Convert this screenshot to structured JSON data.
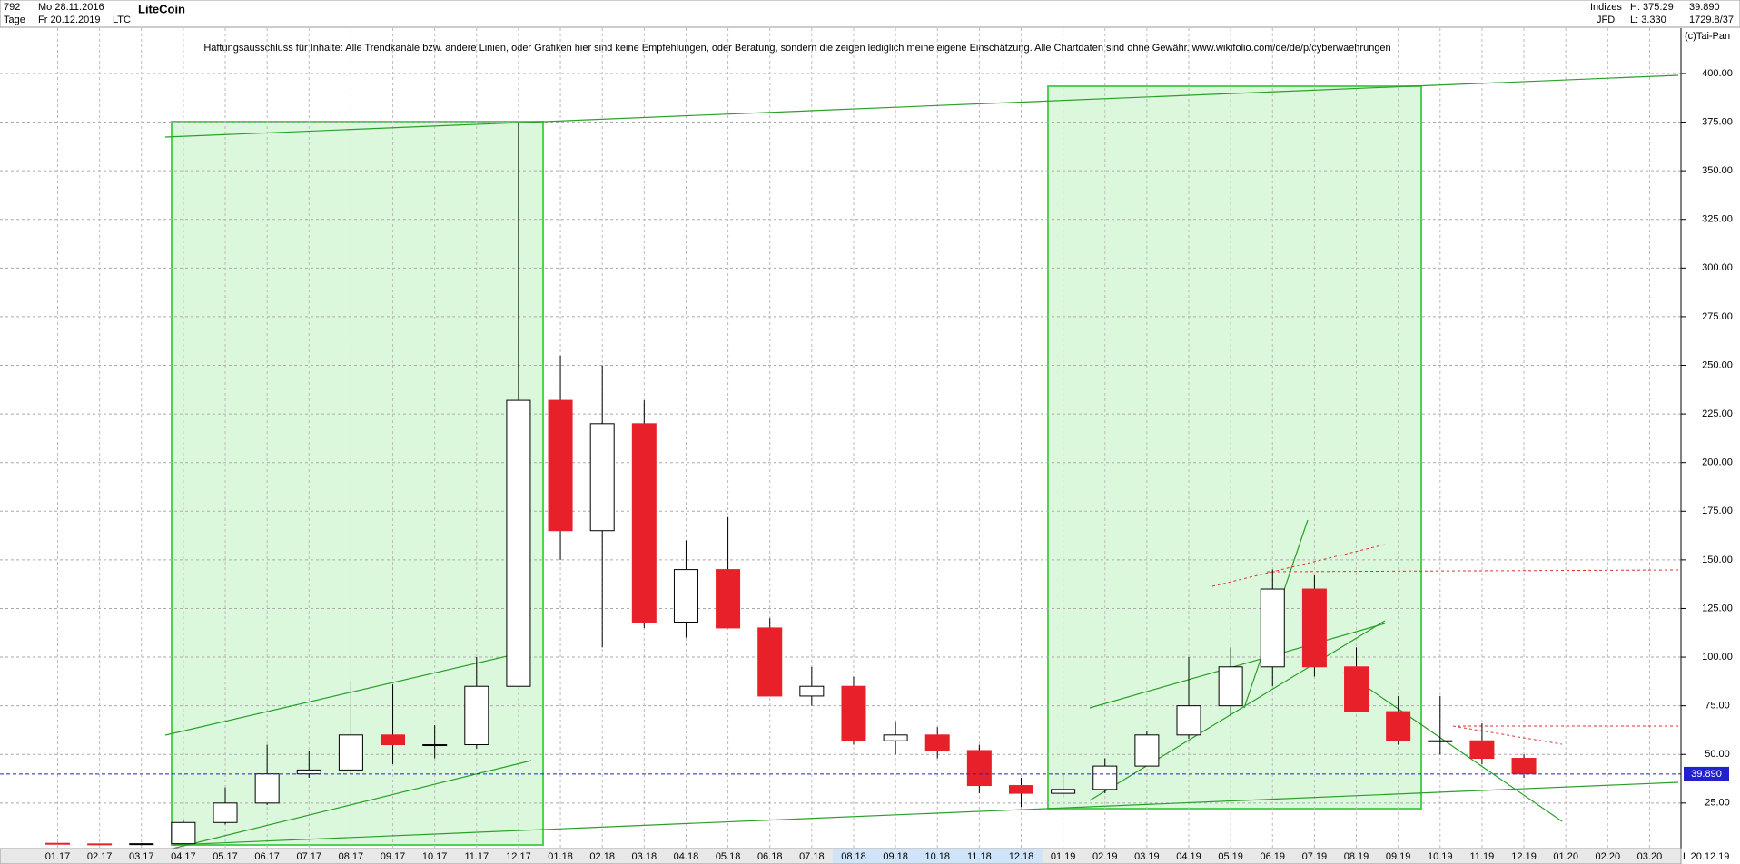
{
  "header": {
    "count": "792",
    "start": "Mo 28.11.2016",
    "period": "Tage",
    "end": "Fr 20.12.2019",
    "name": "LiteCoin",
    "symbol": "LTC",
    "group": "Indizes",
    "source": "JFD",
    "high": "H: 375.29",
    "low": "L: 3.330",
    "ratio": "1729.8/37",
    "copyright": "(c)Tai-Pan",
    "date": "20.12.19",
    "axis_mode": "L"
  },
  "chart_data": {
    "type": "candlestick",
    "title": "LiteCoin",
    "annotation": "Haftungsausschluss für Inhalte: Alle Trendkanäle bzw. andere Linien, oder Grafiken hier sind keine Empfehlungen, oder Beratung, sondern die zeigen lediglich meine eigene Einschätzung. Alle Chartdaten sind ohne Gewähr.  www.wikifolio.com/de/de/p/cyberwaehrungen",
    "categories": [
      "01.17",
      "02.17",
      "03.17",
      "04.17",
      "05.17",
      "06.17",
      "07.17",
      "08.17",
      "09.17",
      "10.17",
      "11.17",
      "12.17",
      "01.18",
      "02.18",
      "03.18",
      "04.18",
      "05.18",
      "06.18",
      "07.18",
      "08.18",
      "09.18",
      "10.18",
      "11.18",
      "12.18",
      "01.19",
      "02.19",
      "03.19",
      "04.19",
      "05.19",
      "06.19",
      "07.19",
      "08.19",
      "09.19",
      "10.19",
      "11.19",
      "12.19",
      "01.20",
      "02.20",
      "03.20"
    ],
    "open": [
      4.3,
      4.0,
      3.8,
      4.1,
      15,
      25,
      40,
      42,
      60,
      55,
      55,
      85,
      232,
      165,
      220,
      118,
      145,
      115,
      80,
      85,
      57,
      60,
      52,
      34,
      30,
      32,
      44,
      60,
      75,
      95,
      135,
      95,
      72,
      57,
      57,
      48,
      null,
      null,
      null
    ],
    "high": [
      4.6,
      4.2,
      4.3,
      16,
      33,
      55,
      52,
      88,
      86,
      65,
      100,
      375,
      255,
      250,
      232,
      160,
      172,
      120,
      95,
      90,
      67,
      64,
      55,
      38,
      40,
      48,
      62,
      100,
      105,
      145,
      142,
      105,
      80,
      80,
      66,
      50,
      null,
      null,
      null
    ],
    "low": [
      3.9,
      3.6,
      3.33,
      4.0,
      14,
      24,
      38,
      40,
      45,
      48,
      53,
      85,
      150,
      105,
      115,
      110,
      115,
      80,
      75,
      55,
      50,
      48,
      30,
      23,
      28,
      30,
      44,
      58,
      70,
      85,
      90,
      72,
      55,
      50,
      45,
      38,
      null,
      null,
      null
    ],
    "close": [
      4.0,
      3.8,
      4.1,
      15,
      25,
      40,
      42,
      60,
      55,
      55,
      85,
      232,
      165,
      220,
      118,
      145,
      115,
      80,
      85,
      57,
      60,
      52,
      34,
      30,
      32,
      44,
      60,
      75,
      95,
      135,
      95,
      72,
      57,
      57,
      48,
      40,
      null,
      null,
      null
    ],
    "up_color": "#ffffff",
    "down_color": "#e8202a",
    "ylim": [
      1.6,
      423.3
    ],
    "yticks": [
      {
        "value": 25,
        "label": "25.00"
      },
      {
        "value": 50,
        "label": "50.00"
      },
      {
        "value": 75,
        "label": "75.00"
      },
      {
        "value": 100,
        "label": "100.00"
      },
      {
        "value": 125,
        "label": "125.00"
      },
      {
        "value": 150,
        "label": "150.00"
      },
      {
        "value": 175,
        "label": "175.00"
      },
      {
        "value": 200,
        "label": "200.00"
      },
      {
        "value": 225,
        "label": "225.00"
      },
      {
        "value": 250,
        "label": "250.00"
      },
      {
        "value": 275,
        "label": "275.00"
      },
      {
        "value": 300,
        "label": "300.00"
      },
      {
        "value": 325,
        "label": "325.00"
      },
      {
        "value": 350,
        "label": "350.00"
      },
      {
        "value": 375,
        "label": "375.00"
      },
      {
        "value": 400,
        "label": "400.00"
      }
    ],
    "last_price": {
      "value": 39.89,
      "label": "39.890"
    },
    "grid": true
  }
}
